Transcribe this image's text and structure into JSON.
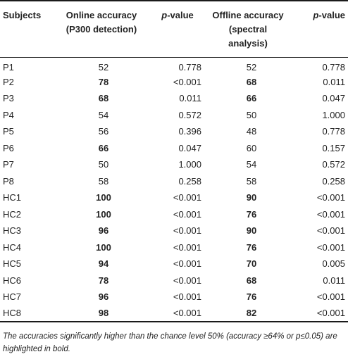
{
  "table": {
    "headers": {
      "subjects": "Subjects",
      "online_l1": "Online accuracy",
      "online_l2": "(P300 detection)",
      "p1": "p",
      "p1_suffix": "-value",
      "offline_l1": "Offline accuracy",
      "offline_l2": "(spectral",
      "offline_l3": "analysis)",
      "p2": "p",
      "p2_suffix": "-value"
    },
    "rows": [
      {
        "subject": "P1",
        "online": "52",
        "online_bold": false,
        "p_online": "0.778",
        "offline": "52",
        "offline_bold": false,
        "p_offline": "0.778"
      },
      {
        "subject": "P2",
        "online": "78",
        "online_bold": true,
        "p_online": "<0.001",
        "offline": "68",
        "offline_bold": true,
        "p_offline": "0.011"
      },
      {
        "subject": "P3",
        "online": "68",
        "online_bold": true,
        "p_online": "0.011",
        "offline": "66",
        "offline_bold": true,
        "p_offline": "0.047"
      },
      {
        "subject": "P4",
        "online": "54",
        "online_bold": false,
        "p_online": "0.572",
        "offline": "50",
        "offline_bold": false,
        "p_offline": "1.000"
      },
      {
        "subject": "P5",
        "online": "56",
        "online_bold": false,
        "p_online": "0.396",
        "offline": "48",
        "offline_bold": false,
        "p_offline": "0.778"
      },
      {
        "subject": "P6",
        "online": "66",
        "online_bold": true,
        "p_online": "0.047",
        "offline": "60",
        "offline_bold": false,
        "p_offline": "0.157"
      },
      {
        "subject": "P7",
        "online": "50",
        "online_bold": false,
        "p_online": "1.000",
        "offline": "54",
        "offline_bold": false,
        "p_offline": "0.572"
      },
      {
        "subject": "P8",
        "online": "58",
        "online_bold": false,
        "p_online": "0.258",
        "offline": "58",
        "offline_bold": false,
        "p_offline": "0.258"
      },
      {
        "subject": "HC1",
        "online": "100",
        "online_bold": true,
        "p_online": "<0.001",
        "offline": "90",
        "offline_bold": true,
        "p_offline": "<0.001"
      },
      {
        "subject": "HC2",
        "online": "100",
        "online_bold": true,
        "p_online": "<0.001",
        "offline": "76",
        "offline_bold": true,
        "p_offline": "<0.001"
      },
      {
        "subject": "HC3",
        "online": "96",
        "online_bold": true,
        "p_online": "<0.001",
        "offline": "90",
        "offline_bold": true,
        "p_offline": "<0.001"
      },
      {
        "subject": "HC4",
        "online": "100",
        "online_bold": true,
        "p_online": "<0.001",
        "offline": "76",
        "offline_bold": true,
        "p_offline": "<0.001"
      },
      {
        "subject": "HC5",
        "online": "94",
        "online_bold": true,
        "p_online": "<0.001",
        "offline": "70",
        "offline_bold": true,
        "p_offline": "0.005"
      },
      {
        "subject": "HC6",
        "online": "78",
        "online_bold": true,
        "p_online": "<0.001",
        "offline": "68",
        "offline_bold": true,
        "p_offline": "0.011"
      },
      {
        "subject": "HC7",
        "online": "96",
        "online_bold": true,
        "p_online": "<0.001",
        "offline": "76",
        "offline_bold": true,
        "p_offline": "<0.001"
      },
      {
        "subject": "HC8",
        "online": "98",
        "online_bold": true,
        "p_online": "<0.001",
        "offline": "82",
        "offline_bold": true,
        "p_offline": "<0.001"
      }
    ]
  },
  "footnote": "The accuracies significantly higher than the chance level 50% (accuracy ≥64% or p≤0.05) are highlighted in bold."
}
